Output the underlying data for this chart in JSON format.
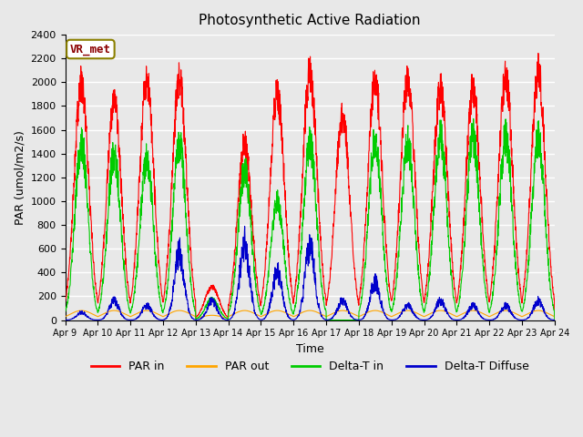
{
  "title": "Photosynthetic Active Radiation",
  "ylabel": "PAR (umol/m2/s)",
  "xlabel": "Time",
  "ylim": [
    0,
    2400
  ],
  "yticks": [
    0,
    200,
    400,
    600,
    800,
    1000,
    1200,
    1400,
    1600,
    1800,
    2000,
    2200,
    2400
  ],
  "xtick_labels": [
    "Apr 9",
    "Apr 10",
    "Apr 11",
    "Apr 12",
    "Apr 13",
    "Apr 14",
    "Apr 15",
    "Apr 16",
    "Apr 17",
    "Apr 18",
    "Apr 19",
    "Apr 20",
    "Apr 21",
    "Apr 22",
    "Apr 23",
    "Apr 24"
  ],
  "plot_bg_color": "#e8e8e8",
  "grid_color": "#ffffff",
  "annotation_text": "VR_met",
  "annotation_bg": "#ffffff",
  "annotation_border": "#8B8000",
  "annotation_text_color": "#8B0000",
  "legend_items": [
    "PAR in",
    "PAR out",
    "Delta-T in",
    "Delta-T Diffuse"
  ],
  "legend_colors": [
    "#ff0000",
    "#ffa500",
    "#00cc00",
    "#0000cc"
  ],
  "line_colors": {
    "par_in": "#ff0000",
    "par_out": "#ffa500",
    "delta_t_in": "#00cc00",
    "delta_t_diffuse": "#0000cc"
  },
  "num_days": 15,
  "day_peaks_par_in": [
    2150,
    2000,
    2175,
    2175,
    300,
    1600,
    2050,
    2250,
    1850,
    2175,
    2175,
    2100,
    2100,
    2200,
    2250
  ],
  "day_peaks_par_out": [
    80,
    80,
    80,
    80,
    40,
    80,
    80,
    80,
    80,
    80,
    80,
    80,
    80,
    80,
    80
  ],
  "day_peaks_delta_t_in": [
    1650,
    1550,
    1500,
    1650,
    200,
    1400,
    1100,
    1650,
    0,
    1700,
    1650,
    1700,
    1700,
    1700,
    1700
  ],
  "day_peaks_delta_t_diff": [
    80,
    200,
    150,
    700,
    200,
    800,
    500,
    750,
    200,
    400,
    150,
    200,
    150,
    150,
    200
  ]
}
